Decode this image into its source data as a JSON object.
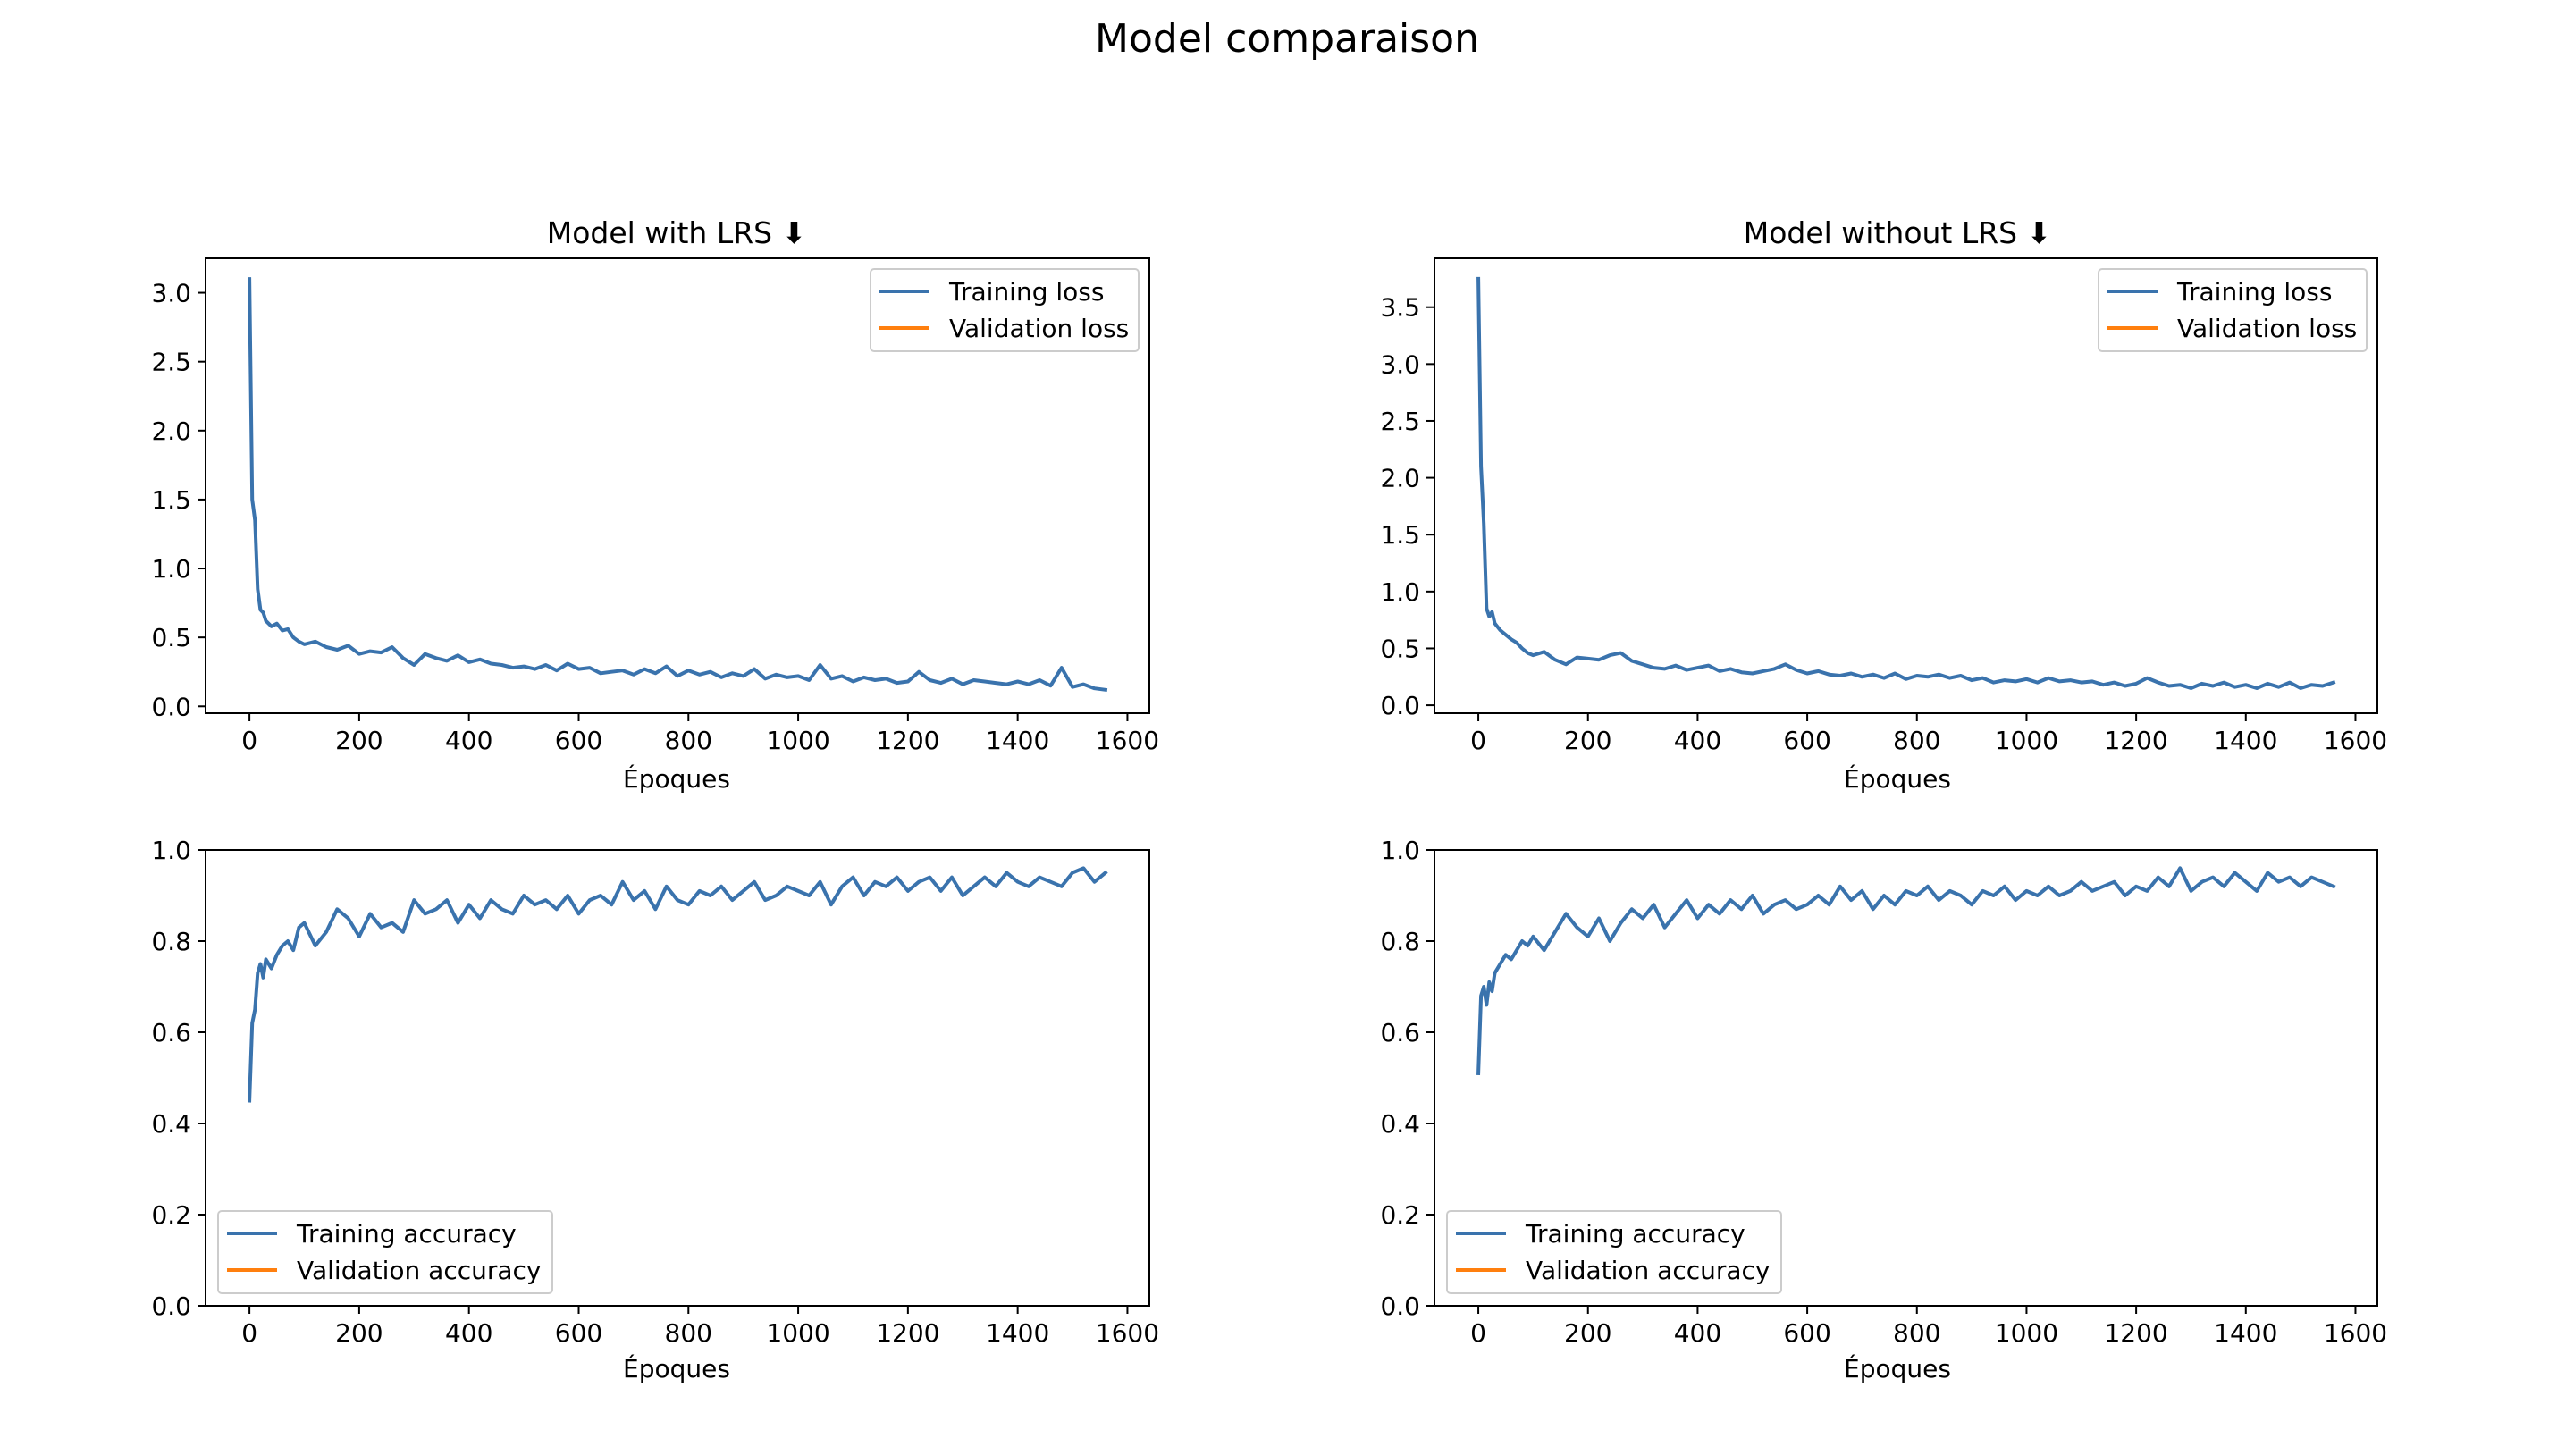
{
  "figure": {
    "title": "Model comparaison"
  },
  "colors": {
    "training": "#3a73ad",
    "validation": "#ff7f0e"
  },
  "chart_data": [
    {
      "id": "lrs-loss",
      "type": "line",
      "title": "Model with LRS ⬇",
      "xlabel": "Époques",
      "ylabel": "",
      "xlim": [
        -80,
        1640
      ],
      "ylim": [
        -0.05,
        3.25
      ],
      "xticks": [
        0,
        200,
        400,
        600,
        800,
        1000,
        1200,
        1400,
        1600
      ],
      "yticks": [
        "0.0",
        "0.5",
        "1.0",
        "1.5",
        "2.0",
        "2.5",
        "3.0"
      ],
      "legend": "upper right",
      "series": [
        {
          "name": "Training loss",
          "color_key": "training",
          "x": [
            0,
            5,
            10,
            15,
            20,
            25,
            30,
            40,
            50,
            60,
            70,
            80,
            90,
            100,
            120,
            140,
            160,
            180,
            200,
            220,
            240,
            260,
            280,
            300,
            320,
            340,
            360,
            380,
            400,
            420,
            440,
            460,
            480,
            500,
            520,
            540,
            560,
            580,
            600,
            620,
            640,
            660,
            680,
            700,
            720,
            740,
            760,
            780,
            800,
            820,
            840,
            860,
            880,
            900,
            920,
            940,
            960,
            980,
            1000,
            1020,
            1040,
            1060,
            1080,
            1100,
            1120,
            1140,
            1160,
            1180,
            1200,
            1220,
            1240,
            1260,
            1280,
            1300,
            1320,
            1340,
            1360,
            1380,
            1400,
            1420,
            1440,
            1460,
            1480,
            1500,
            1520,
            1540,
            1560
          ],
          "values": [
            3.1,
            1.5,
            1.35,
            0.85,
            0.7,
            0.68,
            0.62,
            0.58,
            0.6,
            0.55,
            0.56,
            0.5,
            0.47,
            0.45,
            0.47,
            0.43,
            0.41,
            0.44,
            0.38,
            0.4,
            0.39,
            0.43,
            0.35,
            0.3,
            0.38,
            0.35,
            0.33,
            0.37,
            0.32,
            0.34,
            0.31,
            0.3,
            0.28,
            0.29,
            0.27,
            0.3,
            0.26,
            0.31,
            0.27,
            0.28,
            0.24,
            0.25,
            0.26,
            0.23,
            0.27,
            0.24,
            0.29,
            0.22,
            0.26,
            0.23,
            0.25,
            0.21,
            0.24,
            0.22,
            0.27,
            0.2,
            0.23,
            0.21,
            0.22,
            0.19,
            0.3,
            0.2,
            0.22,
            0.18,
            0.21,
            0.19,
            0.2,
            0.17,
            0.18,
            0.25,
            0.19,
            0.17,
            0.2,
            0.16,
            0.19,
            0.18,
            0.17,
            0.16,
            0.18,
            0.16,
            0.19,
            0.15,
            0.28,
            0.14,
            0.16,
            0.13,
            0.12
          ]
        },
        {
          "name": "Validation loss",
          "color_key": "validation",
          "x": [],
          "values": []
        }
      ]
    },
    {
      "id": "nolrs-loss",
      "type": "line",
      "title": "Model without LRS ⬇",
      "xlabel": "Époques",
      "ylabel": "",
      "xlim": [
        -80,
        1640
      ],
      "ylim": [
        -0.07,
        3.93
      ],
      "xticks": [
        0,
        200,
        400,
        600,
        800,
        1000,
        1200,
        1400,
        1600
      ],
      "yticks": [
        "0.0",
        "0.5",
        "1.0",
        "1.5",
        "2.0",
        "2.5",
        "3.0",
        "3.5"
      ],
      "legend": "upper right",
      "series": [
        {
          "name": "Training loss",
          "color_key": "training",
          "x": [
            0,
            5,
            10,
            15,
            20,
            25,
            30,
            40,
            50,
            60,
            70,
            80,
            90,
            100,
            120,
            140,
            160,
            180,
            200,
            220,
            240,
            260,
            280,
            300,
            320,
            340,
            360,
            380,
            400,
            420,
            440,
            460,
            480,
            500,
            520,
            540,
            560,
            580,
            600,
            620,
            640,
            660,
            680,
            700,
            720,
            740,
            760,
            780,
            800,
            820,
            840,
            860,
            880,
            900,
            920,
            940,
            960,
            980,
            1000,
            1020,
            1040,
            1060,
            1080,
            1100,
            1120,
            1140,
            1160,
            1180,
            1200,
            1220,
            1240,
            1260,
            1280,
            1300,
            1320,
            1340,
            1360,
            1380,
            1400,
            1420,
            1440,
            1460,
            1480,
            1500,
            1520,
            1540,
            1560
          ],
          "values": [
            3.75,
            2.1,
            1.6,
            0.85,
            0.78,
            0.82,
            0.72,
            0.66,
            0.62,
            0.58,
            0.55,
            0.5,
            0.46,
            0.44,
            0.47,
            0.4,
            0.36,
            0.42,
            0.41,
            0.4,
            0.44,
            0.46,
            0.39,
            0.36,
            0.33,
            0.32,
            0.35,
            0.31,
            0.33,
            0.35,
            0.3,
            0.32,
            0.29,
            0.28,
            0.3,
            0.32,
            0.36,
            0.31,
            0.28,
            0.3,
            0.27,
            0.26,
            0.28,
            0.25,
            0.27,
            0.24,
            0.28,
            0.23,
            0.26,
            0.25,
            0.27,
            0.24,
            0.26,
            0.22,
            0.24,
            0.2,
            0.22,
            0.21,
            0.23,
            0.2,
            0.24,
            0.21,
            0.22,
            0.2,
            0.21,
            0.18,
            0.2,
            0.17,
            0.19,
            0.24,
            0.2,
            0.17,
            0.18,
            0.15,
            0.19,
            0.17,
            0.2,
            0.16,
            0.18,
            0.15,
            0.19,
            0.16,
            0.2,
            0.15,
            0.18,
            0.17,
            0.2
          ]
        },
        {
          "name": "Validation loss",
          "color_key": "validation",
          "x": [],
          "values": []
        }
      ]
    },
    {
      "id": "lrs-acc",
      "type": "line",
      "title": "",
      "xlabel": "Époques",
      "ylabel": "",
      "xlim": [
        -80,
        1640
      ],
      "ylim": [
        0.0,
        1.0
      ],
      "xticks": [
        0,
        200,
        400,
        600,
        800,
        1000,
        1200,
        1400,
        1600
      ],
      "yticks": [
        "0.0",
        "0.2",
        "0.4",
        "0.6",
        "0.8",
        "1.0"
      ],
      "legend": "lower left",
      "series": [
        {
          "name": "Training accuracy",
          "color_key": "training",
          "x": [
            0,
            5,
            10,
            15,
            20,
            25,
            30,
            40,
            50,
            60,
            70,
            80,
            90,
            100,
            120,
            140,
            160,
            180,
            200,
            220,
            240,
            260,
            280,
            300,
            320,
            340,
            360,
            380,
            400,
            420,
            440,
            460,
            480,
            500,
            520,
            540,
            560,
            580,
            600,
            620,
            640,
            660,
            680,
            700,
            720,
            740,
            760,
            780,
            800,
            820,
            840,
            860,
            880,
            900,
            920,
            940,
            960,
            980,
            1000,
            1020,
            1040,
            1060,
            1080,
            1100,
            1120,
            1140,
            1160,
            1180,
            1200,
            1220,
            1240,
            1260,
            1280,
            1300,
            1320,
            1340,
            1360,
            1380,
            1400,
            1420,
            1440,
            1460,
            1480,
            1500,
            1520,
            1540,
            1560
          ],
          "values": [
            0.45,
            0.62,
            0.65,
            0.73,
            0.75,
            0.72,
            0.76,
            0.74,
            0.77,
            0.79,
            0.8,
            0.78,
            0.83,
            0.84,
            0.79,
            0.82,
            0.87,
            0.85,
            0.81,
            0.86,
            0.83,
            0.84,
            0.82,
            0.89,
            0.86,
            0.87,
            0.89,
            0.84,
            0.88,
            0.85,
            0.89,
            0.87,
            0.86,
            0.9,
            0.88,
            0.89,
            0.87,
            0.9,
            0.86,
            0.89,
            0.9,
            0.88,
            0.93,
            0.89,
            0.91,
            0.87,
            0.92,
            0.89,
            0.88,
            0.91,
            0.9,
            0.92,
            0.89,
            0.91,
            0.93,
            0.89,
            0.9,
            0.92,
            0.91,
            0.9,
            0.93,
            0.88,
            0.92,
            0.94,
            0.9,
            0.93,
            0.92,
            0.94,
            0.91,
            0.93,
            0.94,
            0.91,
            0.94,
            0.9,
            0.92,
            0.94,
            0.92,
            0.95,
            0.93,
            0.92,
            0.94,
            0.93,
            0.92,
            0.95,
            0.96,
            0.93,
            0.95
          ]
        },
        {
          "name": "Validation accuracy",
          "color_key": "validation",
          "x": [],
          "values": []
        }
      ]
    },
    {
      "id": "nolrs-acc",
      "type": "line",
      "title": "",
      "xlabel": "Époques",
      "ylabel": "",
      "xlim": [
        -80,
        1640
      ],
      "ylim": [
        0.0,
        1.0
      ],
      "xticks": [
        0,
        200,
        400,
        600,
        800,
        1000,
        1200,
        1400,
        1600
      ],
      "yticks": [
        "0.0",
        "0.2",
        "0.4",
        "0.6",
        "0.8",
        "1.0"
      ],
      "legend": "lower left",
      "series": [
        {
          "name": "Training accuracy",
          "color_key": "training",
          "x": [
            0,
            5,
            10,
            15,
            20,
            25,
            30,
            40,
            50,
            60,
            70,
            80,
            90,
            100,
            120,
            140,
            160,
            180,
            200,
            220,
            240,
            260,
            280,
            300,
            320,
            340,
            360,
            380,
            400,
            420,
            440,
            460,
            480,
            500,
            520,
            540,
            560,
            580,
            600,
            620,
            640,
            660,
            680,
            700,
            720,
            740,
            760,
            780,
            800,
            820,
            840,
            860,
            880,
            900,
            920,
            940,
            960,
            980,
            1000,
            1020,
            1040,
            1060,
            1080,
            1100,
            1120,
            1140,
            1160,
            1180,
            1200,
            1220,
            1240,
            1260,
            1280,
            1300,
            1320,
            1340,
            1360,
            1380,
            1400,
            1420,
            1440,
            1460,
            1480,
            1500,
            1520,
            1540,
            1560
          ],
          "values": [
            0.51,
            0.68,
            0.7,
            0.66,
            0.71,
            0.69,
            0.73,
            0.75,
            0.77,
            0.76,
            0.78,
            0.8,
            0.79,
            0.81,
            0.78,
            0.82,
            0.86,
            0.83,
            0.81,
            0.85,
            0.8,
            0.84,
            0.87,
            0.85,
            0.88,
            0.83,
            0.86,
            0.89,
            0.85,
            0.88,
            0.86,
            0.89,
            0.87,
            0.9,
            0.86,
            0.88,
            0.89,
            0.87,
            0.88,
            0.9,
            0.88,
            0.92,
            0.89,
            0.91,
            0.87,
            0.9,
            0.88,
            0.91,
            0.9,
            0.92,
            0.89,
            0.91,
            0.9,
            0.88,
            0.91,
            0.9,
            0.92,
            0.89,
            0.91,
            0.9,
            0.92,
            0.9,
            0.91,
            0.93,
            0.91,
            0.92,
            0.93,
            0.9,
            0.92,
            0.91,
            0.94,
            0.92,
            0.96,
            0.91,
            0.93,
            0.94,
            0.92,
            0.95,
            0.93,
            0.91,
            0.95,
            0.93,
            0.94,
            0.92,
            0.94,
            0.93,
            0.92
          ]
        },
        {
          "name": "Validation accuracy",
          "color_key": "validation",
          "x": [],
          "values": []
        }
      ]
    }
  ]
}
